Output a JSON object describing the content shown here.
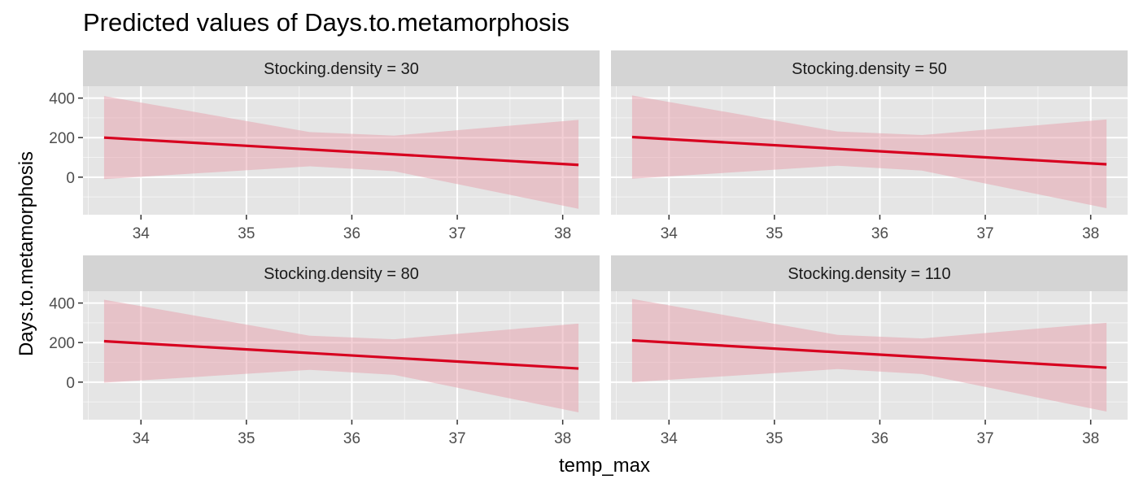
{
  "chart_data": {
    "type": "line",
    "title": "Predicted values of Days.to.metamorphosis",
    "xlabel": "temp_max",
    "ylabel": "Days.to.metamorphosis",
    "xlim": [
      33.45,
      38.35
    ],
    "ylim": [
      -190,
      460
    ],
    "x_ticks": [
      34,
      35,
      36,
      37,
      38
    ],
    "y_ticks": [
      0,
      200,
      400
    ],
    "grid": true,
    "facet_variable": "Stocking.density",
    "colors": {
      "line": "#d7001f",
      "ribbon": "#e8a0ab",
      "panel_background": "#e5e5e5",
      "strip_background": "#d4d4d4",
      "grid": "#ffffff"
    },
    "panels": [
      {
        "strip_label": "Stocking.density = 30",
        "fit": {
          "x": [
            33.65,
            38.15
          ],
          "y": [
            200,
            62
          ]
        },
        "ribbon": {
          "x": [
            33.65,
            35.6,
            36.4,
            38.15
          ],
          "upper": [
            410,
            228,
            210,
            290
          ],
          "lower": [
            -10,
            55,
            30,
            -160
          ]
        }
      },
      {
        "strip_label": "Stocking.density = 50",
        "fit": {
          "x": [
            33.65,
            38.15
          ],
          "y": [
            203,
            65
          ]
        },
        "ribbon": {
          "x": [
            33.65,
            35.6,
            36.4,
            38.15
          ],
          "upper": [
            413,
            231,
            213,
            292
          ],
          "lower": [
            -8,
            58,
            33,
            -157
          ]
        }
      },
      {
        "strip_label": "Stocking.density = 80",
        "fit": {
          "x": [
            33.65,
            38.15
          ],
          "y": [
            207,
            69
          ]
        },
        "ribbon": {
          "x": [
            33.65,
            35.6,
            36.4,
            38.15
          ],
          "upper": [
            417,
            235,
            217,
            296
          ],
          "lower": [
            -3,
            62,
            37,
            -153
          ]
        }
      },
      {
        "strip_label": "Stocking.density = 110",
        "fit": {
          "x": [
            33.65,
            38.15
          ],
          "y": [
            211,
            73
          ]
        },
        "ribbon": {
          "x": [
            33.65,
            35.6,
            36.4,
            38.15
          ],
          "upper": [
            421,
            239,
            221,
            300
          ],
          "lower": [
            0,
            66,
            41,
            -149
          ]
        }
      }
    ]
  }
}
